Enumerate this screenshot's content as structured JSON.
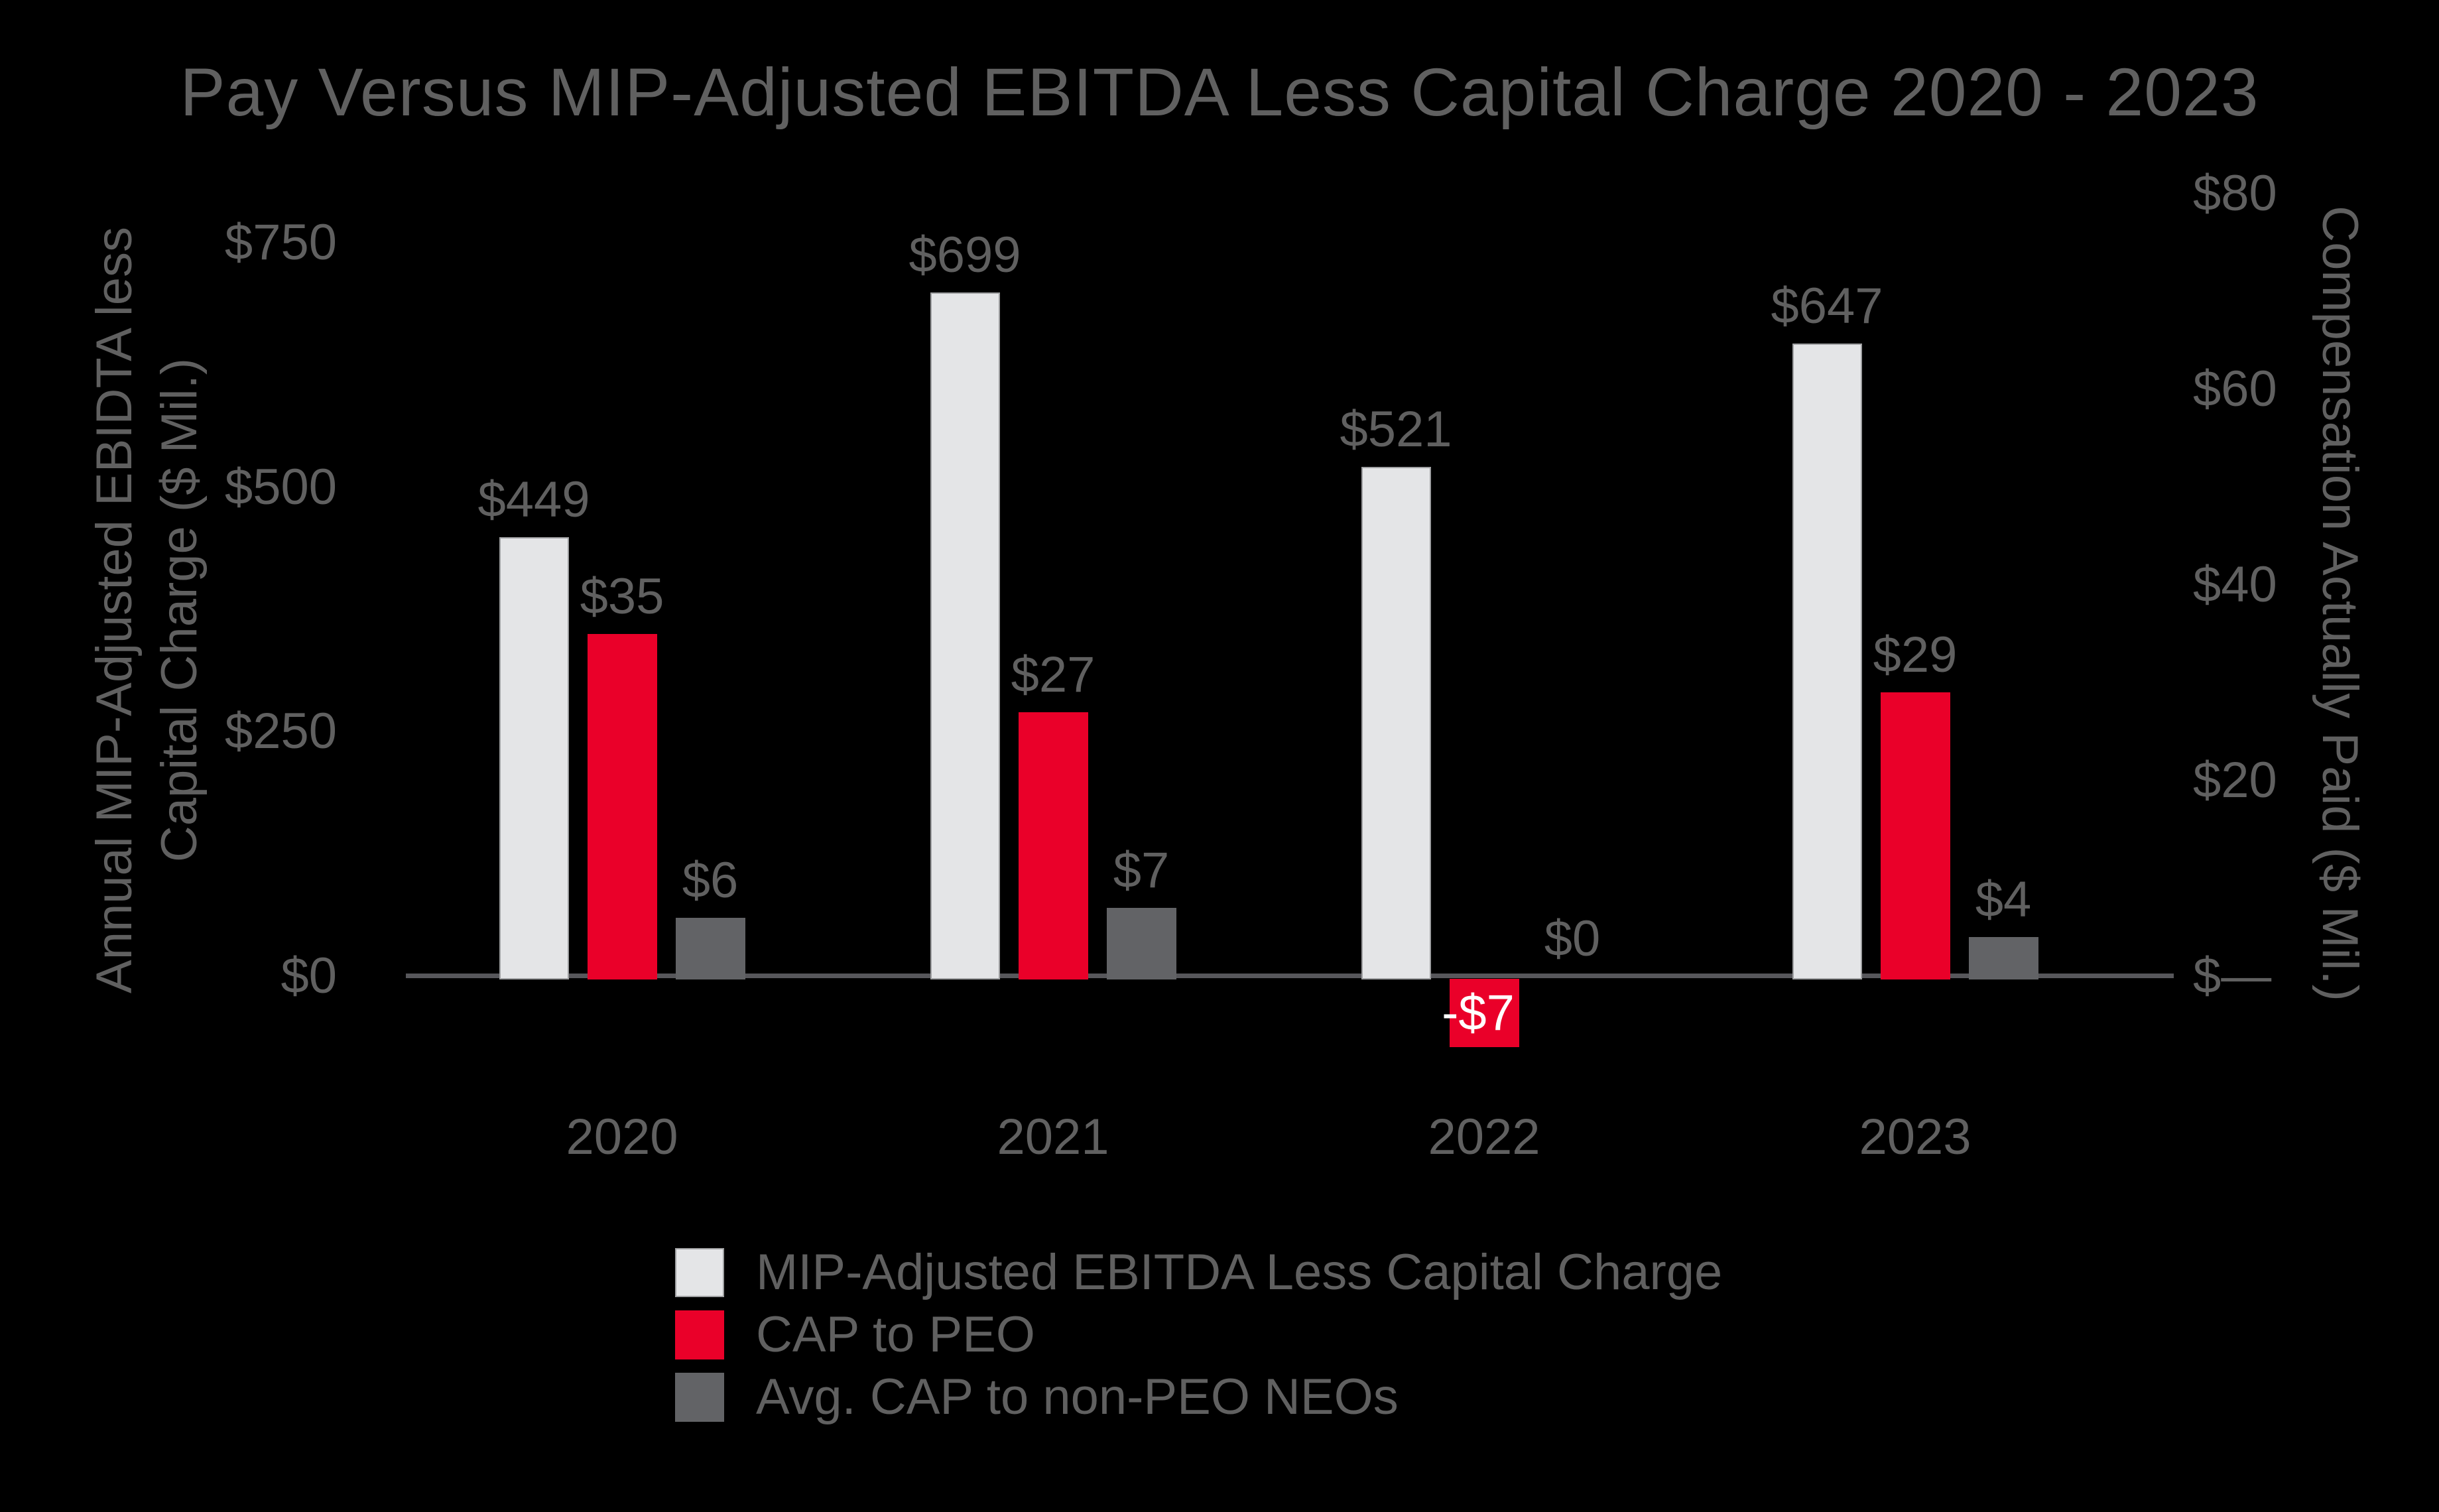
{
  "title": "Pay Versus MIP-Adjusted EBITDA Less Capital Charge 2020 - 2023",
  "colors": {
    "background": "#000000",
    "text": "#606060",
    "axis_line": "#57575b",
    "negative_label_text": "#ffffff",
    "series_white": "#e4e5e7",
    "series_white_border": "#9fa0a2",
    "series_red": "#ea0029",
    "series_gray": "#626366"
  },
  "chart_data": {
    "type": "bar",
    "categories": [
      "2020",
      "2021",
      "2022",
      "2023"
    ],
    "series": [
      {
        "name": "MIP-Adjusted EBITDA Less Capital Charge",
        "axis": "left",
        "color": "#e4e5e7",
        "border_color": "#9fa0a2",
        "values": [
          449,
          699,
          521,
          647
        ],
        "value_labels": [
          "$449",
          "$699",
          "$521",
          "$647"
        ]
      },
      {
        "name": "CAP to PEO",
        "axis": "right",
        "color": "#ea0029",
        "values": [
          35,
          27,
          -7,
          29
        ],
        "value_labels": [
          "$35",
          "$27",
          "-$7",
          "$29"
        ]
      },
      {
        "name": "Avg. CAP to non-PEO NEOs",
        "axis": "right",
        "color": "#626366",
        "values": [
          6,
          7,
          0,
          4
        ],
        "value_labels": [
          "$6",
          "$7",
          "$0",
          "$4"
        ]
      }
    ],
    "left_axis": {
      "title_lines": [
        "Annual MIP-Adjusted EBIDTA less",
        "Capital Charge ($ Mil.)"
      ],
      "min": 0,
      "max": 750,
      "ticks": [
        {
          "label": "$750",
          "value": 750
        },
        {
          "label": "$500",
          "value": 500
        },
        {
          "label": "$250",
          "value": 250
        },
        {
          "label": "$0",
          "value": 0
        }
      ]
    },
    "right_axis": {
      "title": "Compensation Actually Paid ($ Mil.)",
      "min": 0,
      "max": 80,
      "ticks": [
        {
          "label": "$80",
          "value": 80
        },
        {
          "label": "$60",
          "value": 60
        },
        {
          "label": "$40",
          "value": 40
        },
        {
          "label": "$20",
          "value": 20
        },
        {
          "label": "$—",
          "value": 0
        }
      ]
    },
    "legend_position": "bottom",
    "grid": false
  }
}
